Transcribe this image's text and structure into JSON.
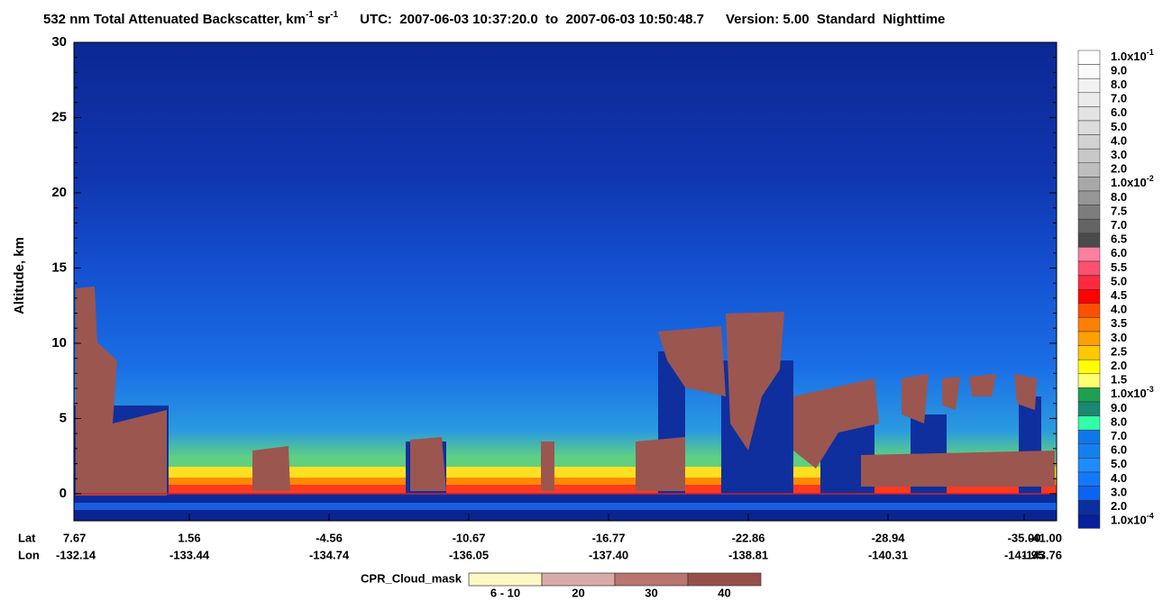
{
  "chart_data": {
    "type": "curtain",
    "title": {
      "main": "532 nm Total Attenuated Backscatter, km",
      "unit_exp1": "-1",
      "unit_mid": " sr",
      "unit_exp2": "-1",
      "time": "UTC:  2007-06-03 10:37:20.0  to  2007-06-03 10:50:48.7",
      "version": "Version: 5.00  Standard  Nighttime"
    },
    "y_label": "Altitude, km",
    "ylim": [
      -1.8,
      30
    ],
    "yticks": [
      0,
      5,
      10,
      15,
      20,
      25,
      30
    ],
    "lat_label": "Lat",
    "lon_label": "Lon",
    "lat": [
      "7.67",
      "1.56",
      "-4.56",
      "-10.67",
      "-16.77",
      "-22.86",
      "-28.94",
      "-35.00",
      "-41.00"
    ],
    "lon": [
      "-132.14",
      "-133.44",
      "-134.74",
      "-136.05",
      "-137.40",
      "-138.81",
      "-140.31",
      "-141.95",
      "-143.76"
    ],
    "colorbar": {
      "labels": [
        {
          "text": "1.0x10",
          "exp": "-1"
        },
        {
          "text": "9.0"
        },
        {
          "text": "8.0"
        },
        {
          "text": "7.0"
        },
        {
          "text": "6.0"
        },
        {
          "text": "5.0"
        },
        {
          "text": "4.0"
        },
        {
          "text": "3.0"
        },
        {
          "text": "2.0"
        },
        {
          "text": "1.0x10",
          "exp": "-2"
        },
        {
          "text": "8.0"
        },
        {
          "text": "7.5"
        },
        {
          "text": "7.0"
        },
        {
          "text": "6.5"
        },
        {
          "text": "6.0"
        },
        {
          "text": "5.5"
        },
        {
          "text": "5.0"
        },
        {
          "text": "4.5"
        },
        {
          "text": "4.0"
        },
        {
          "text": "3.5"
        },
        {
          "text": "3.0"
        },
        {
          "text": "2.5"
        },
        {
          "text": "2.0"
        },
        {
          "text": "1.5"
        },
        {
          "text": "1.0x10",
          "exp": "-3"
        },
        {
          "text": "9.0"
        },
        {
          "text": "8.0"
        },
        {
          "text": "7.0"
        },
        {
          "text": "6.0"
        },
        {
          "text": "5.0"
        },
        {
          "text": "4.0"
        },
        {
          "text": "3.0"
        },
        {
          "text": "2.0"
        },
        {
          "text": "1.0x10",
          "exp": "-4"
        }
      ],
      "colors": [
        "#ffffff",
        "#fafafa",
        "#f2f2f2",
        "#ebebeb",
        "#e3e3e3",
        "#dcdcdc",
        "#d2d2d2",
        "#c8c8c8",
        "#bebebe",
        "#a8a8a8",
        "#969696",
        "#7d7d7d",
        "#646464",
        "#4a4a4a",
        "#ff80a0",
        "#ff5070",
        "#ff2a40",
        "#ff0000",
        "#ff5000",
        "#ff8000",
        "#ffa000",
        "#ffc800",
        "#ffff00",
        "#ffff70",
        "#1fa050",
        "#178a70",
        "#30ffa8",
        "#0e78e8",
        "#1480f0",
        "#1e8cff",
        "#1478ff",
        "#0a64f0",
        "#0a30a0",
        "#08209a"
      ]
    },
    "cloud_mask": {
      "title": "CPR_Cloud_mask",
      "labels": [
        "6 - 10",
        "20",
        "30",
        "40"
      ],
      "colors": [
        "#fff8c4",
        "#d9aaa8",
        "#b97570",
        "#96504a"
      ]
    }
  }
}
